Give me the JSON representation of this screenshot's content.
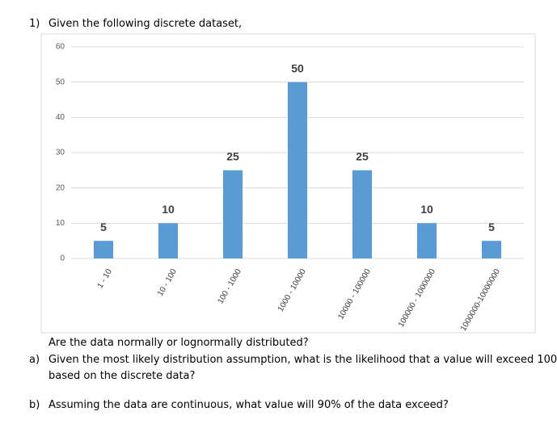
{
  "question": {
    "number": "1)",
    "text": "Given the following discrete dataset,"
  },
  "chart_data": {
    "type": "bar",
    "categories": [
      "1 - 10",
      "10 - 100",
      "100 - 1000",
      "1000 - 10000",
      "10000 - 100000",
      "100000 - 1000000",
      "1000000-10000000"
    ],
    "values": [
      5,
      10,
      25,
      50,
      25,
      10,
      5
    ],
    "color": "#5b9bd5",
    "ylim": [
      0,
      60
    ],
    "yticks": [
      0,
      10,
      20,
      30,
      40,
      50,
      60
    ],
    "grid": true
  },
  "prompt": "Are the data normally or lognormally distributed?",
  "parts": [
    {
      "label": "a)",
      "text": "Given the most likely distribution assumption, what is the likelihood that a value will exceed 100",
      "text2": "based on the discrete data?"
    },
    {
      "label": "b)",
      "text": "Assuming the data are continuous, what value will 90% of the data exceed?"
    }
  ]
}
